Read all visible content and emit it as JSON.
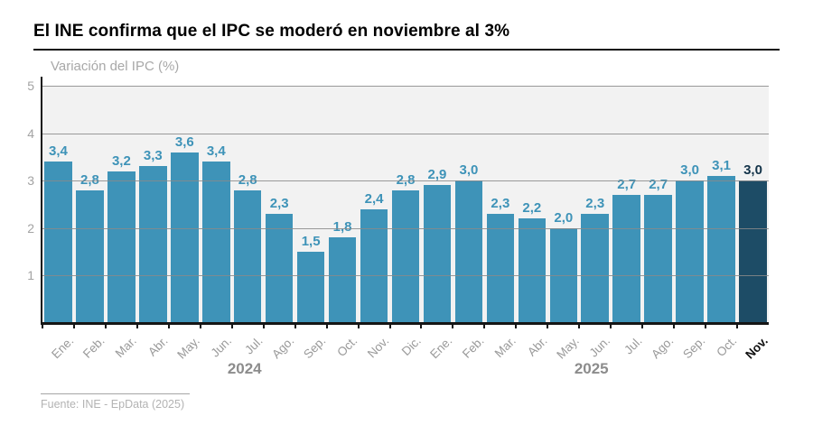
{
  "title": "El INE confirma que el IPC se moderó en noviembre al 3%",
  "footer": {
    "source": "Fuente: INE - EpData (2025)"
  },
  "chart_data": {
    "type": "bar",
    "title": "El INE confirma que el IPC se moderó en noviembre al 3%",
    "ylabel": "Variación del IPC (%)",
    "xlabel": "",
    "ylim": [
      0,
      5
    ],
    "yticks": [
      1,
      2,
      3,
      4,
      5
    ],
    "grid": true,
    "legend": "none",
    "categories": [
      "Ene.",
      "Feb.",
      "Mar.",
      "Abr.",
      "May.",
      "Jun.",
      "Jul.",
      "Ago.",
      "Sep.",
      "Oct.",
      "Nov.",
      "Dic.",
      "Ene.",
      "Feb.",
      "Mar.",
      "Abr.",
      "May.",
      "Jun.",
      "Jul.",
      "Ago.",
      "Sep.",
      "Oct.",
      "Nov."
    ],
    "values": [
      3.4,
      2.8,
      3.2,
      3.3,
      3.6,
      3.4,
      2.8,
      2.3,
      1.5,
      1.8,
      2.4,
      2.8,
      2.9,
      3.0,
      2.3,
      2.2,
      2.0,
      2.3,
      2.7,
      2.7,
      3.0,
      3.1,
      3.0
    ],
    "value_labels": [
      "3,4",
      "2,8",
      "3,2",
      "3,3",
      "3,6",
      "3,4",
      "2,8",
      "2,3",
      "1,5",
      "1,8",
      "2,4",
      "2,8",
      "2,9",
      "3,0",
      "2,3",
      "2,2",
      "2,0",
      "2,3",
      "2,7",
      "2,7",
      "3,0",
      "3,1",
      "3,0"
    ],
    "year_groups": [
      {
        "label": "2024",
        "start": 0,
        "count": 12
      },
      {
        "label": "2025",
        "start": 12,
        "count": 11
      }
    ],
    "highlight_index": 22,
    "colors": {
      "bar": "#3e93b8",
      "bar_highlight": "#1d4c66",
      "value_label": "#3e93b8",
      "value_label_highlight": "#133349",
      "grid": "#8a8a8a",
      "axis": "#151515",
      "plot_background": "#f2f2f2"
    }
  }
}
